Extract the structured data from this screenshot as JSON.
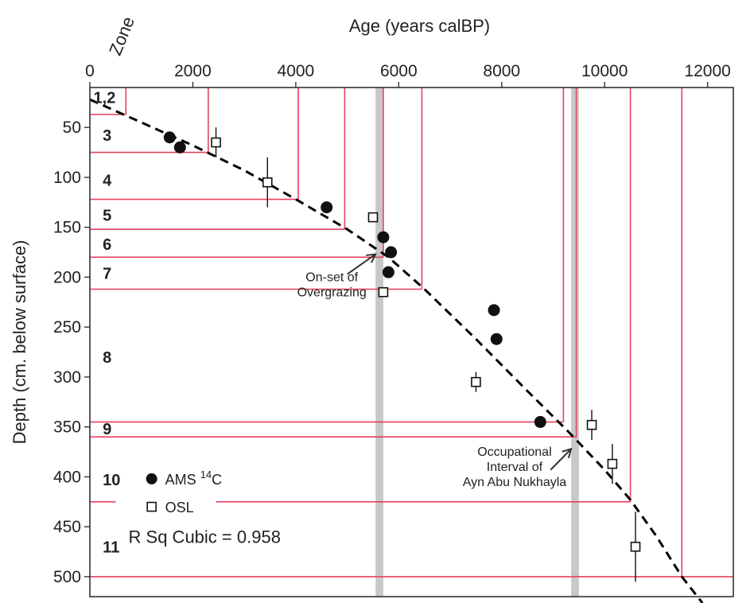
{
  "chart_data": {
    "type": "scatter",
    "title": "",
    "xlabel": "Age (years calBP)",
    "ylabel": "Depth (cm. below surface)",
    "zone_label": "Zone",
    "xlim": [
      0,
      12500
    ],
    "ylim": [
      10,
      520
    ],
    "x_axis_position": "top",
    "y_axis_inverted": true,
    "grid": false,
    "x_ticks": [
      0,
      2000,
      4000,
      6000,
      8000,
      10000,
      12000
    ],
    "y_ticks": [
      50,
      100,
      150,
      200,
      250,
      300,
      350,
      400,
      450,
      500
    ],
    "legend_position": "bottom-left",
    "series": [
      {
        "name": "AMS 14C",
        "marker": "filled-circle",
        "points": [
          {
            "x": 1550,
            "y": 60
          },
          {
            "x": 1750,
            "y": 70
          },
          {
            "x": 4600,
            "y": 130
          },
          {
            "x": 5700,
            "y": 160
          },
          {
            "x": 5850,
            "y": 175
          },
          {
            "x": 5800,
            "y": 195
          },
          {
            "x": 7850,
            "y": 233
          },
          {
            "x": 7900,
            "y": 262
          },
          {
            "x": 8750,
            "y": 345
          }
        ]
      },
      {
        "name": "OSL",
        "marker": "open-square",
        "points": [
          {
            "x": 2450,
            "y": 65,
            "err": 15
          },
          {
            "x": 3450,
            "y": 105,
            "err": 25
          },
          {
            "x": 5500,
            "y": 140
          },
          {
            "x": 5700,
            "y": 215
          },
          {
            "x": 7500,
            "y": 305,
            "err": 10
          },
          {
            "x": 9750,
            "y": 348,
            "err": 15
          },
          {
            "x": 10150,
            "y": 387,
            "err": 20
          },
          {
            "x": 10600,
            "y": 470,
            "err": 35
          }
        ]
      }
    ],
    "fit": {
      "type": "cubic",
      "style": "dashed",
      "points": [
        {
          "x": 0,
          "y": 22
        },
        {
          "x": 1000,
          "y": 45
        },
        {
          "x": 2000,
          "y": 68
        },
        {
          "x": 3000,
          "y": 93
        },
        {
          "x": 4000,
          "y": 122
        },
        {
          "x": 5000,
          "y": 152
        },
        {
          "x": 5800,
          "y": 180
        },
        {
          "x": 6500,
          "y": 212
        },
        {
          "x": 7500,
          "y": 262
        },
        {
          "x": 8500,
          "y": 314
        },
        {
          "x": 9300,
          "y": 355
        },
        {
          "x": 10000,
          "y": 393
        },
        {
          "x": 10500,
          "y": 423
        },
        {
          "x": 11000,
          "y": 459
        },
        {
          "x": 11500,
          "y": 500
        },
        {
          "x": 11900,
          "y": 534
        }
      ]
    },
    "zones": [
      {
        "label": "1,2",
        "label_depth": 20,
        "boundary_depth": 37,
        "boundary_age": 700
      },
      {
        "label": "3",
        "label_depth": 58,
        "boundary_depth": 75,
        "boundary_age": 2300
      },
      {
        "label": "4",
        "label_depth": 103,
        "boundary_depth": 122,
        "boundary_age": 4050
      },
      {
        "label": "5",
        "label_depth": 138,
        "boundary_depth": 152,
        "boundary_age": 4950
      },
      {
        "label": "6",
        "label_depth": 167,
        "boundary_depth": 180,
        "boundary_age": 5700
      },
      {
        "label": "7",
        "label_depth": 196,
        "boundary_depth": 212,
        "boundary_age": 6450
      },
      {
        "label": "8",
        "label_depth": 280,
        "boundary_depth": 345,
        "boundary_age": 9200
      },
      {
        "label": "9",
        "label_depth": 352,
        "boundary_depth": 360,
        "boundary_age": 9450
      },
      {
        "label": "10",
        "label_depth": 403,
        "boundary_depth": 425,
        "boundary_age": 10500
      },
      {
        "label": "11",
        "label_depth": 470,
        "boundary_depth": 500,
        "boundary_age": 11500
      }
    ],
    "shaded_bands": [
      {
        "x_from": 5550,
        "x_to": 5700
      },
      {
        "x_from": 9350,
        "x_to": 9500
      }
    ],
    "annotations": [
      {
        "id": "overgrazing",
        "lines": [
          "On-set of",
          "Overgrazing"
        ],
        "text_x": 4700,
        "text_y": 200,
        "arrow_from": {
          "x": 5000,
          "y": 197
        },
        "arrow_to": {
          "x": 5550,
          "y": 177
        }
      },
      {
        "id": "occupation",
        "lines": [
          "Occupational",
          "Interval of",
          "Ayn Abu Nukhayla"
        ],
        "text_x": 8250,
        "text_y": 375,
        "arrow_from": {
          "x": 8950,
          "y": 393
        },
        "arrow_to": {
          "x": 9350,
          "y": 372
        }
      }
    ],
    "legend": {
      "ams_label": "AMS",
      "ams_superscript": "14",
      "ams_suffix": "C",
      "osl_label": "OSL"
    },
    "r_squared_text": "R Sq Cubic = 0.958"
  },
  "colors": {
    "zone_lines": "#e8405f",
    "bands": "#c8c8c8",
    "markers": "#111111",
    "axes": "#333333"
  }
}
